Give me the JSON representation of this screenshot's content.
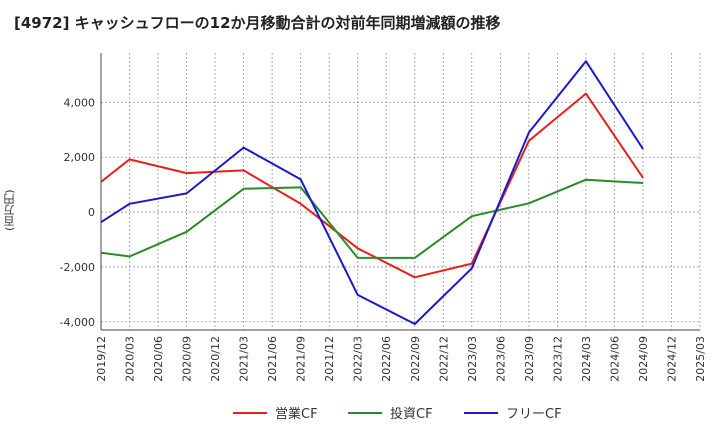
{
  "title": "[4972]  キャッシュフローの12か月移動合計の対前年同期増減額の推移",
  "chart_data": {
    "type": "line",
    "title": "[4972]  キャッシュフローの12か月移動合計の対前年同期増減額の推移",
    "ylabel": "(百万円)",
    "xlabel": "",
    "categories": [
      "2019/12",
      "2020/03",
      "2020/06",
      "2020/09",
      "2020/12",
      "2021/03",
      "2021/06",
      "2021/09",
      "2021/12",
      "2022/03",
      "2022/06",
      "2022/09",
      "2022/12",
      "2023/03",
      "2023/06",
      "2023/09",
      "2023/12",
      "2024/03",
      "2024/06",
      "2024/09",
      "2024/12",
      "2025/03"
    ],
    "ylim": [
      -4300,
      5800
    ],
    "yticks": [
      -4000,
      -2000,
      0,
      2000,
      4000
    ],
    "ytick_labels": [
      "-4,000",
      "-2,000",
      "0",
      "2,000",
      "4,000"
    ],
    "grid": true,
    "legend_position": "bottom",
    "series": [
      {
        "name": "営業CF",
        "color": "#e8201a",
        "values": [
          1100,
          1920,
          null,
          1420,
          null,
          1520,
          null,
          300,
          null,
          -1320,
          null,
          -2380,
          null,
          -1880,
          null,
          2600,
          null,
          4320,
          null,
          1250,
          null,
          null
        ]
      },
      {
        "name": "投資CF",
        "color": "#2b8a2b",
        "values": [
          -1480,
          -1620,
          null,
          -720,
          null,
          850,
          null,
          900,
          null,
          -1670,
          null,
          -1670,
          null,
          -150,
          null,
          320,
          null,
          1180,
          null,
          1060,
          null,
          null
        ]
      },
      {
        "name": "フリーCF",
        "color": "#1a1acc",
        "values": [
          -370,
          300,
          null,
          680,
          null,
          2350,
          null,
          1190,
          null,
          -3020,
          null,
          -4080,
          null,
          -2050,
          null,
          2900,
          null,
          5500,
          null,
          2300,
          null,
          null
        ]
      }
    ]
  }
}
